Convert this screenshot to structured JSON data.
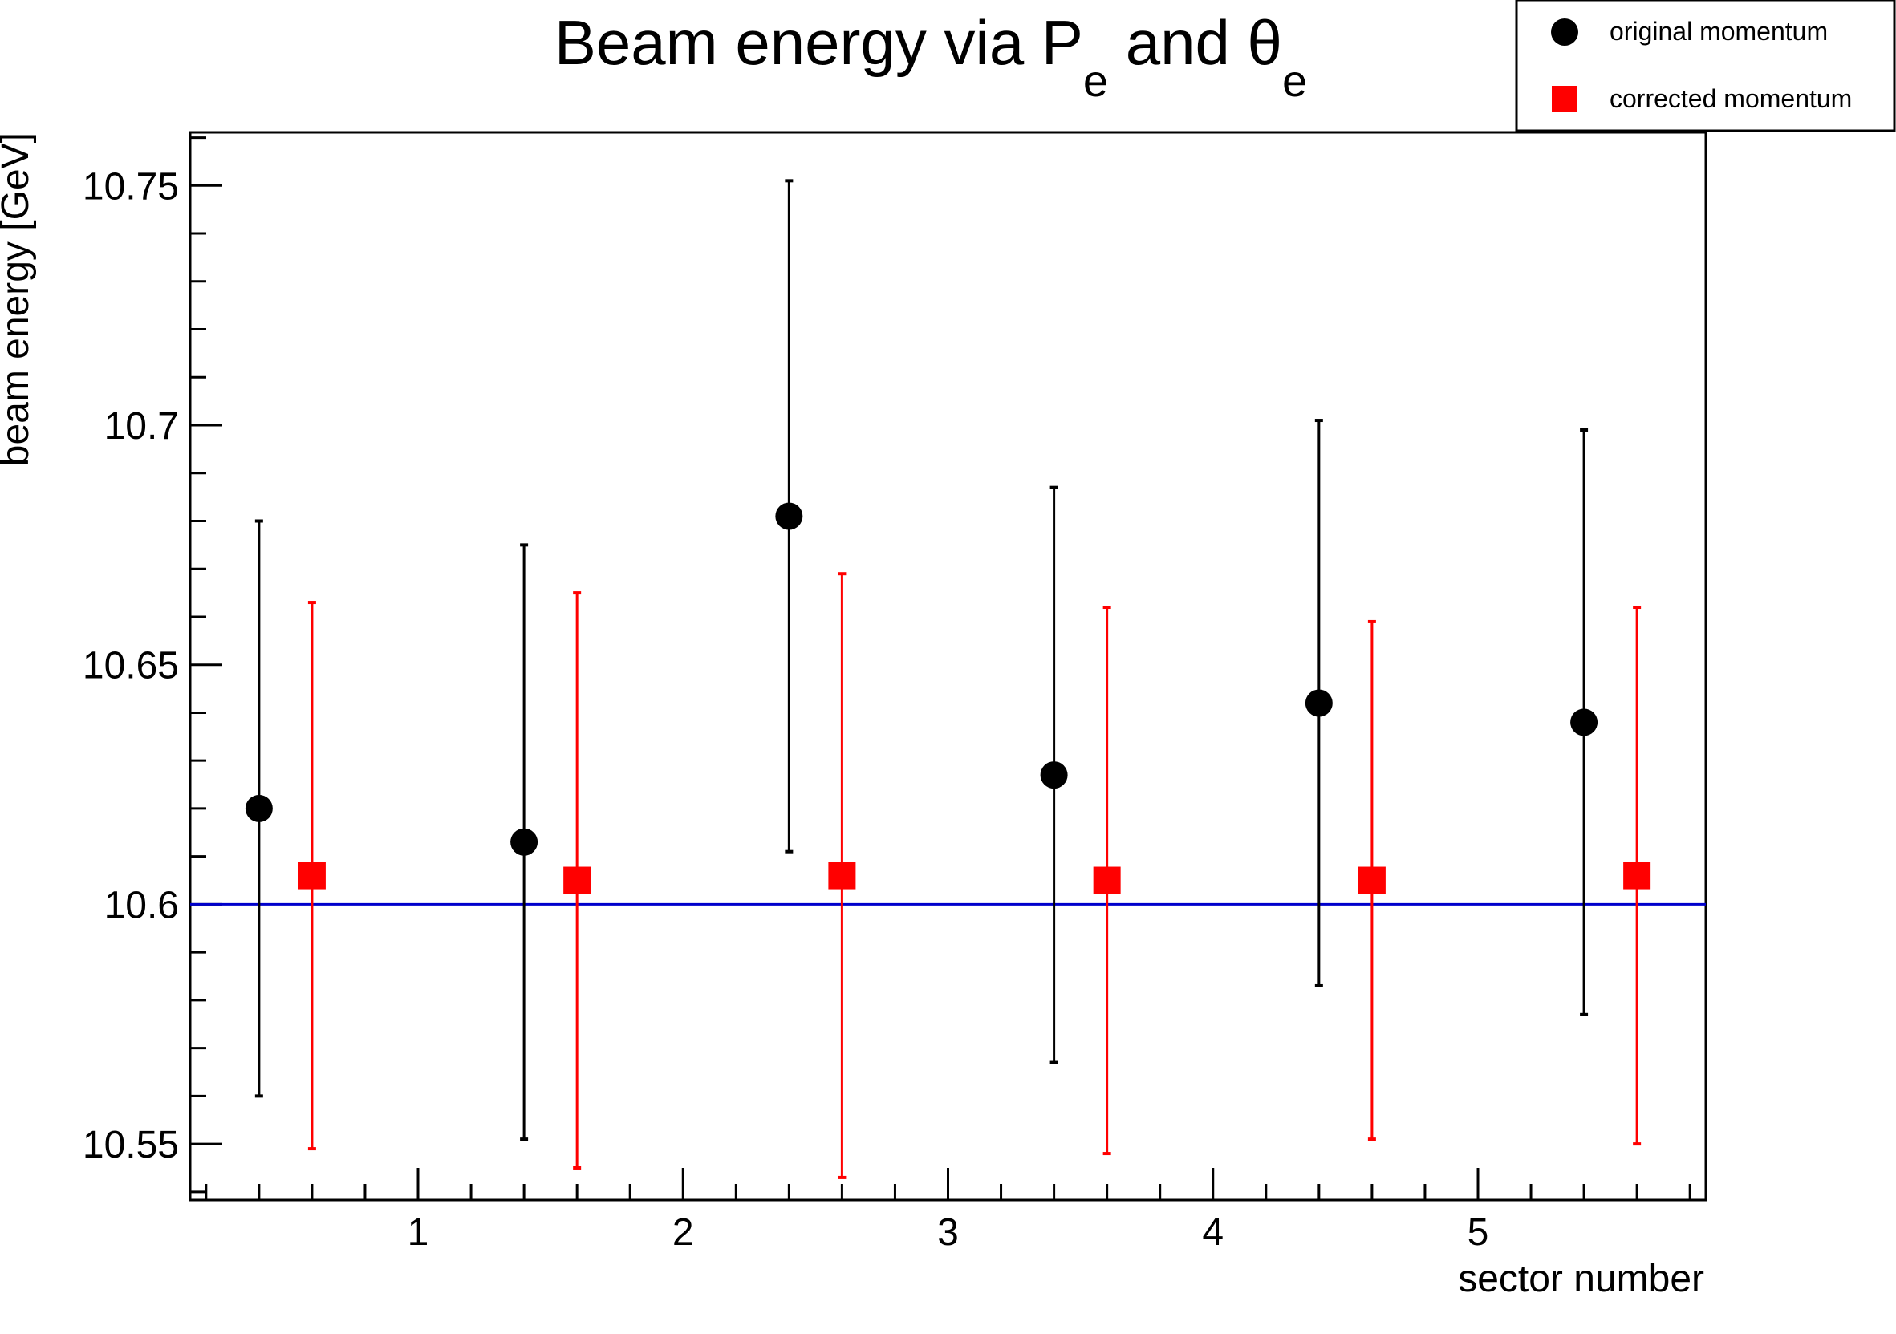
{
  "chart_data": {
    "type": "scatter",
    "title": {
      "text": "Beam energy via P",
      "sub1": "e",
      "mid": " and θ",
      "sub2": "e"
    },
    "xlabel": "sector number",
    "ylabel": "beam energy [GeV]",
    "xlim": [
      0.14,
      5.86
    ],
    "ylim": [
      10.5383,
      10.7611
    ],
    "x_ticks": [
      1,
      2,
      3,
      4,
      5
    ],
    "x_tick_labels": [
      "1",
      "2",
      "3",
      "4",
      "5"
    ],
    "y_ticks": [
      10.55,
      10.6,
      10.65,
      10.7,
      10.75
    ],
    "y_tick_labels": [
      "10.55",
      "10.6",
      "10.65",
      "10.7",
      "10.75"
    ],
    "reference_line": {
      "y": 10.6,
      "color": "#0000cc"
    },
    "legend_position": "top-right",
    "series": [
      {
        "name": "original momentum",
        "marker": "circle",
        "color": "#000000",
        "x": [
          0.4,
          1.4,
          2.4,
          3.4,
          4.4,
          5.4
        ],
        "y": [
          10.62,
          10.613,
          10.681,
          10.627,
          10.642,
          10.638
        ],
        "err": [
          0.06,
          0.062,
          0.07,
          0.06,
          0.059,
          0.061
        ]
      },
      {
        "name": "corrected momentum",
        "marker": "square",
        "color": "#ff0000",
        "x": [
          0.6,
          1.6,
          2.6,
          3.6,
          4.6,
          5.6
        ],
        "y": [
          10.606,
          10.605,
          10.606,
          10.605,
          10.605,
          10.606
        ],
        "err": [
          0.057,
          0.06,
          0.063,
          0.057,
          0.054,
          0.056
        ]
      }
    ]
  }
}
